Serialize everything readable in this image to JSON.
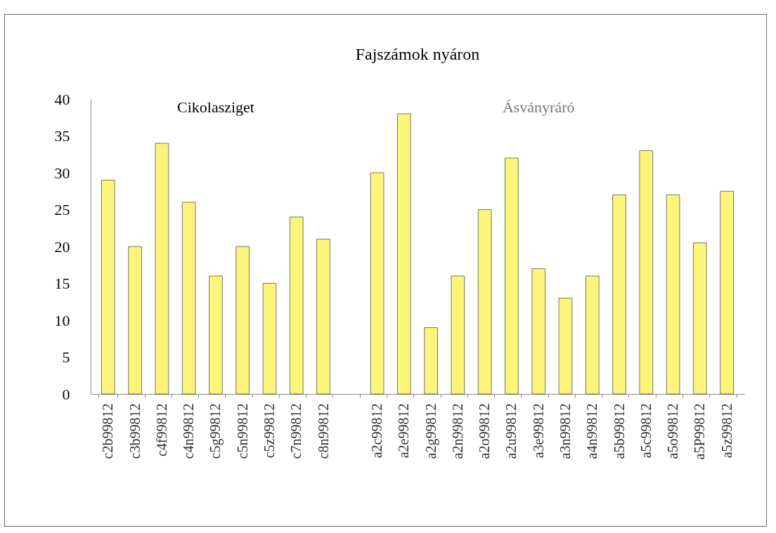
{
  "chart_data": {
    "type": "bar",
    "title": "Fajszámok nyáron",
    "categories": [
      "c2b99812",
      "c3b99812",
      "c4f99812",
      "c4n99812",
      "c5g99812",
      "c5n99812",
      "c5z99812",
      "c7n99812",
      "c8n99812",
      null,
      "a2c99812",
      "a2e99812",
      "a2g99812",
      "a2n99812",
      "a2o99812",
      "a2u99812",
      "a3e99812",
      "a3n99812",
      "a4n99812",
      "a5b99812",
      "a5c99812",
      "a5o99812",
      "a5P99812",
      "a5z99812"
    ],
    "values": [
      29,
      20,
      34,
      26,
      16,
      20,
      15,
      24,
      21,
      null,
      30,
      38,
      9,
      16,
      25,
      32,
      17,
      13,
      16,
      27,
      33,
      27,
      20.5,
      27.5
    ],
    "color": "#fbf57a",
    "ylim": [
      0,
      40
    ],
    "yticks": [
      0,
      5,
      10,
      15,
      20,
      25,
      30,
      35,
      40
    ],
    "grid": false,
    "annotations": [
      "Cikolasziget",
      "Ásványráró"
    ]
  }
}
